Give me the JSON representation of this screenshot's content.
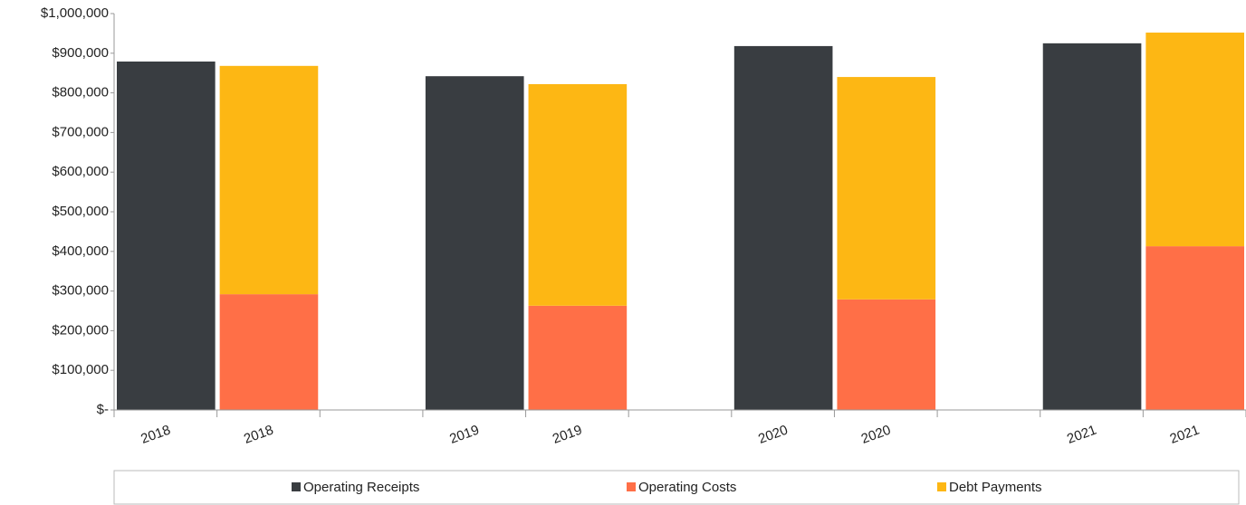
{
  "chart_data": {
    "type": "bar",
    "stacked": true,
    "categories": [
      "2018",
      "2018",
      null,
      "2019",
      "2019",
      null,
      "2020",
      "2020",
      null,
      "2021",
      "2021"
    ],
    "series": [
      {
        "name": "Operating Receipts",
        "color": "#393d41",
        "values": [
          879000,
          null,
          null,
          842000,
          null,
          null,
          918000,
          null,
          null,
          925000,
          null
        ]
      },
      {
        "name": "Operating Costs",
        "color": "#ff6f47",
        "values": [
          null,
          292000,
          null,
          null,
          263000,
          null,
          null,
          279000,
          null,
          null,
          413000
        ]
      },
      {
        "name": "Debt Payments",
        "color": "#fdb714",
        "values": [
          null,
          576000,
          null,
          null,
          559000,
          null,
          null,
          561000,
          null,
          null,
          539000
        ]
      }
    ],
    "ylim": [
      0,
      1000000
    ],
    "yticks": [
      {
        "value": 0,
        "label": "$-"
      },
      {
        "value": 100000,
        "label": "$100,000"
      },
      {
        "value": 200000,
        "label": "$200,000"
      },
      {
        "value": 300000,
        "label": "$300,000"
      },
      {
        "value": 400000,
        "label": "$400,000"
      },
      {
        "value": 500000,
        "label": "$500,000"
      },
      {
        "value": 600000,
        "label": "$600,000"
      },
      {
        "value": 700000,
        "label": "$700,000"
      },
      {
        "value": 800000,
        "label": "$800,000"
      },
      {
        "value": 900000,
        "label": "$900,000"
      },
      {
        "value": 1000000,
        "label": "$1,000,000"
      }
    ],
    "legend": "bottom"
  }
}
